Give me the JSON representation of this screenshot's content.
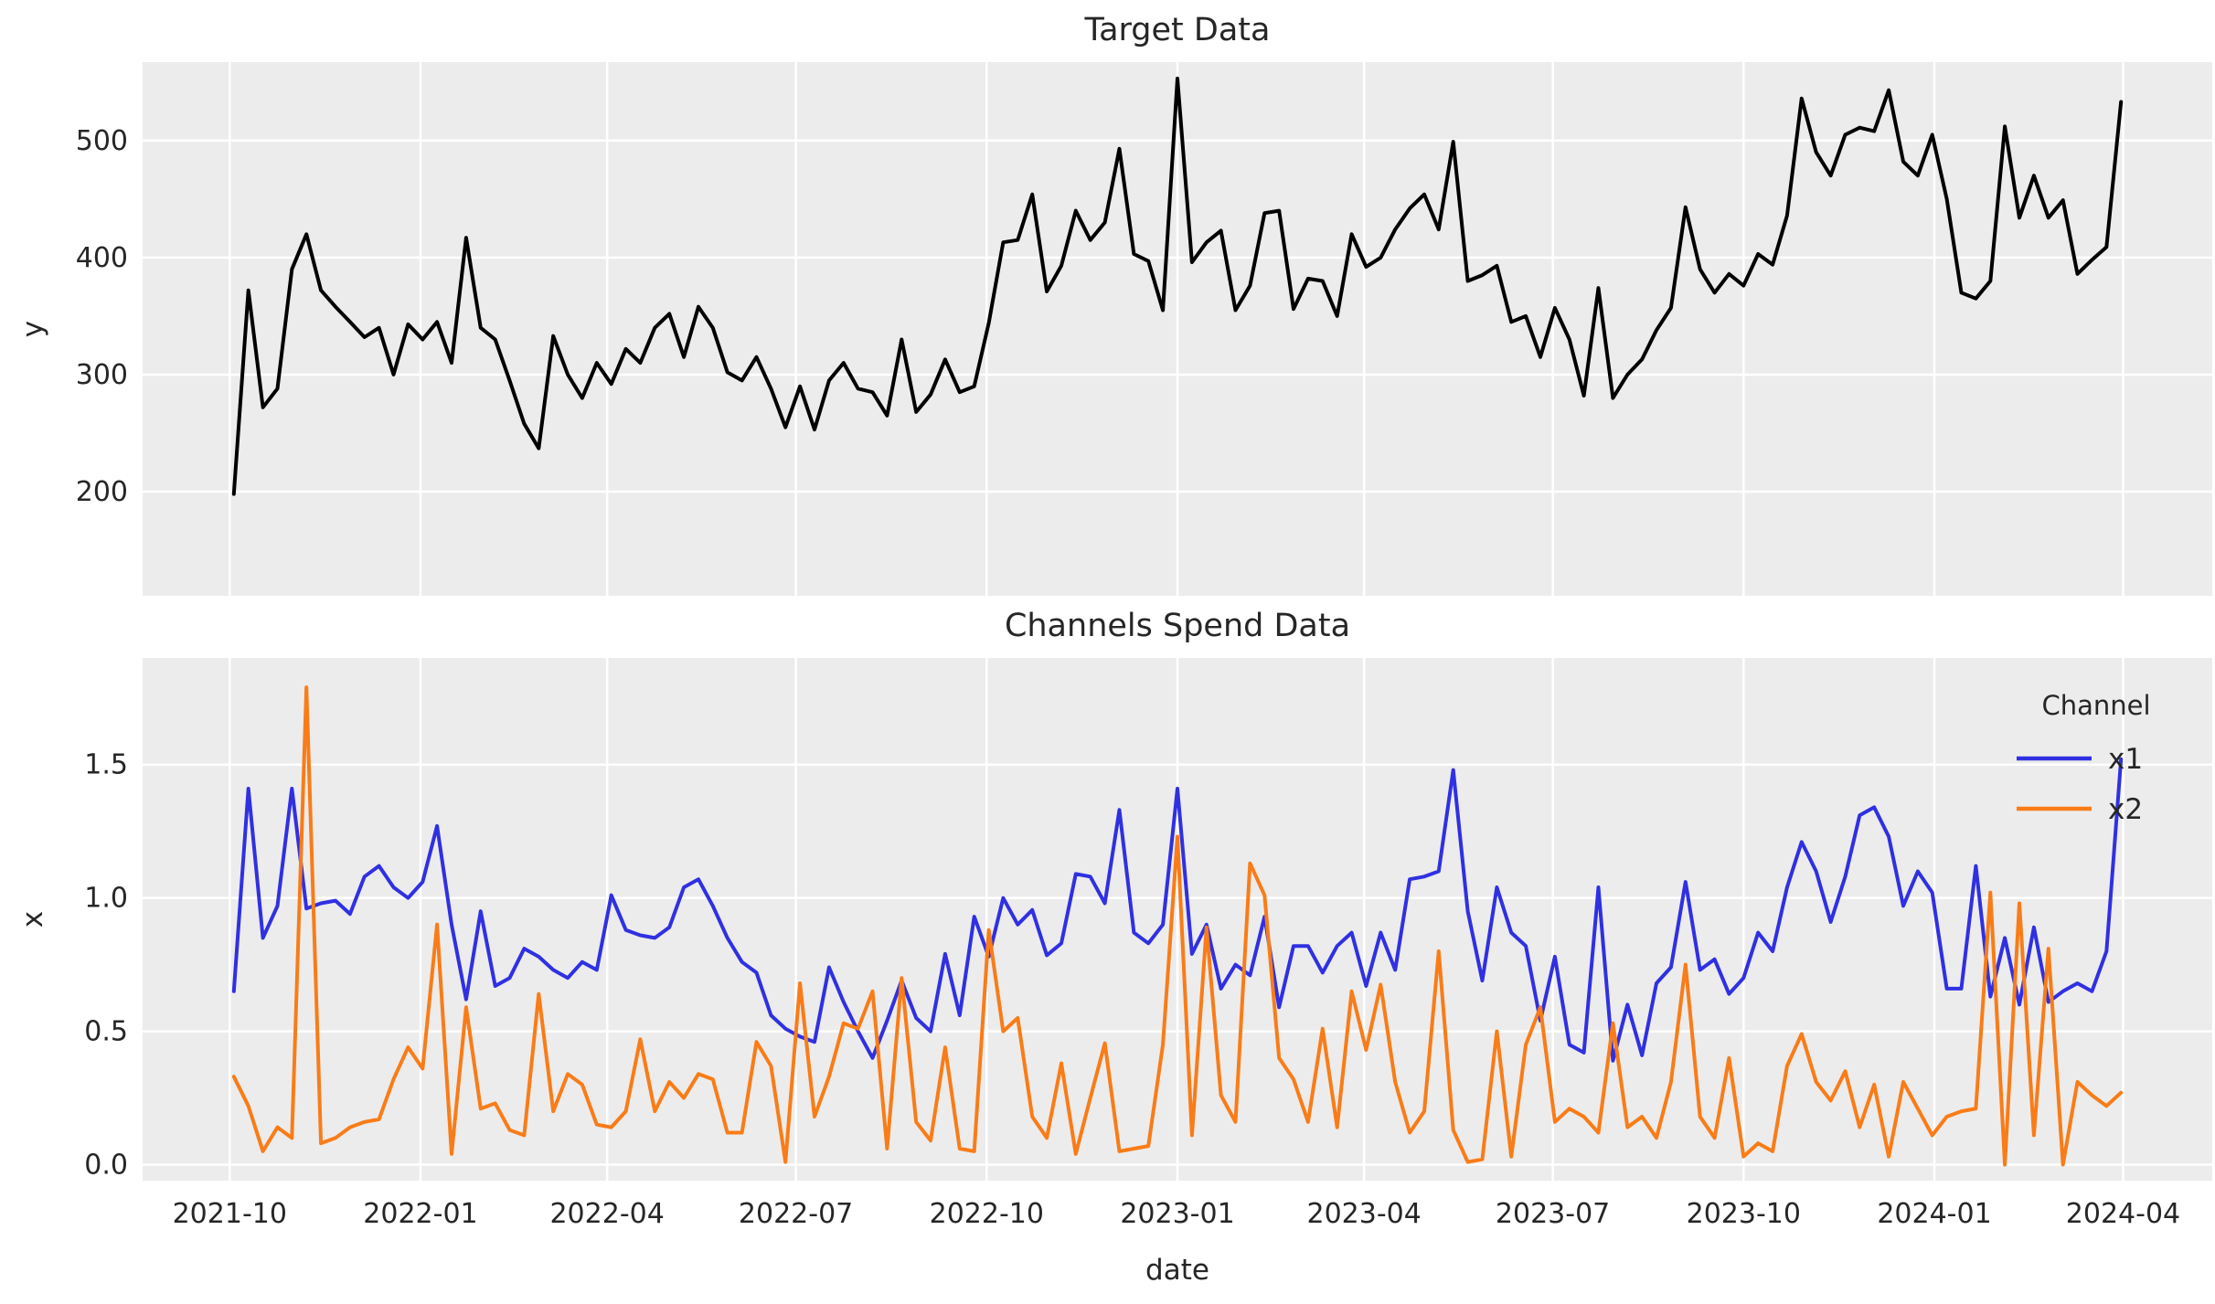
{
  "style": {
    "figure_bg": "#ffffff",
    "plot_bg": "#ececec",
    "grid_color": "#ffffff",
    "text_color": "#262626",
    "target_line_color": "#000000",
    "x1_color": "#3030e2",
    "x2_color": "#f97c18"
  },
  "chart_data": [
    {
      "type": "line",
      "title": "Target Data",
      "ylabel": "y",
      "xlabel": "",
      "x_start_date": "2021-10-03",
      "x_freq_days": 7,
      "x_margin_days": 44,
      "x_tick_dates": [
        "2021-10-01",
        "2022-01-01",
        "2022-04-01",
        "2022-07-01",
        "2022-10-01",
        "2023-01-01",
        "2023-04-01",
        "2023-07-01",
        "2023-10-01",
        "2024-01-01",
        "2024-04-01"
      ],
      "x_tick_labels": [
        "2021-10",
        "2022-01",
        "2022-04",
        "2022-07",
        "2022-10",
        "2023-01",
        "2023-04",
        "2023-07",
        "2023-10",
        "2024-01",
        "2024-04"
      ],
      "show_x_tick_labels": false,
      "ytick_values": [
        200,
        300,
        400,
        500
      ],
      "ytick_labels": [
        "200",
        "300",
        "400",
        "500"
      ],
      "ylim": [
        111,
        567
      ],
      "grid": true,
      "legend": null,
      "series": [
        {
          "name": "y",
          "color": "#000000",
          "values": [
            198,
            372,
            272,
            288,
            390,
            420,
            372,
            358,
            345,
            332,
            340,
            300,
            343,
            330,
            345,
            310,
            417,
            340,
            330,
            295,
            258,
            237,
            333,
            300,
            280,
            310,
            292,
            322,
            310,
            340,
            352,
            315,
            358,
            340,
            302,
            295,
            315,
            288,
            255,
            290,
            253,
            295,
            310,
            288,
            285,
            265,
            330,
            268,
            283,
            313,
            285,
            290,
            344,
            413,
            415,
            454,
            371,
            393,
            440,
            415,
            430,
            493,
            403,
            397,
            355,
            553,
            396,
            413,
            423,
            355,
            376,
            438,
            440,
            356,
            382,
            380,
            350,
            420,
            392,
            400,
            424,
            442,
            454,
            424,
            499,
            380,
            385,
            393,
            345,
            350,
            315,
            357,
            330,
            282,
            374,
            280,
            300,
            313,
            338,
            357,
            443,
            390,
            370,
            386,
            376,
            403,
            394,
            436,
            536,
            490,
            470,
            505,
            511,
            508,
            543,
            482,
            470,
            505,
            450,
            370,
            365,
            380,
            512,
            434,
            470,
            434,
            449,
            386,
            398,
            409,
            533
          ]
        }
      ]
    },
    {
      "type": "line",
      "title": "Channels Spend Data",
      "ylabel": "x",
      "xlabel": "date",
      "x_start_date": "2021-10-03",
      "x_freq_days": 7,
      "x_margin_days": 44,
      "x_tick_dates": [
        "2021-10-01",
        "2022-01-01",
        "2022-04-01",
        "2022-07-01",
        "2022-10-01",
        "2023-01-01",
        "2023-04-01",
        "2023-07-01",
        "2023-10-01",
        "2024-01-01",
        "2024-04-01"
      ],
      "x_tick_labels": [
        "2021-10",
        "2022-01",
        "2022-04",
        "2022-07",
        "2022-10",
        "2023-01",
        "2023-04",
        "2023-07",
        "2023-10",
        "2024-01",
        "2024-04"
      ],
      "show_x_tick_labels": true,
      "ytick_values": [
        0.0,
        0.5,
        1.0,
        1.5
      ],
      "ytick_labels": [
        "0.0",
        "0.5",
        "1.0",
        "1.5"
      ],
      "ylim": [
        -0.06,
        1.9
      ],
      "grid": true,
      "legend": {
        "title": "Channel"
      },
      "series": [
        {
          "name": "x1",
          "color": "#3030e2",
          "values": [
            0.65,
            1.41,
            0.85,
            0.97,
            1.41,
            0.96,
            0.98,
            0.99,
            0.94,
            1.08,
            1.12,
            1.04,
            1.0,
            1.06,
            1.27,
            0.9,
            0.62,
            0.95,
            0.67,
            0.7,
            0.81,
            0.78,
            0.73,
            0.7,
            0.76,
            0.73,
            1.01,
            0.88,
            0.86,
            0.85,
            0.89,
            1.04,
            1.07,
            0.97,
            0.85,
            0.76,
            0.72,
            0.56,
            0.51,
            0.48,
            0.46,
            0.74,
            0.61,
            0.5,
            0.4,
            0.54,
            0.69,
            0.55,
            0.5,
            0.79,
            0.56,
            0.93,
            0.78,
            1.0,
            0.9,
            0.955,
            0.785,
            0.83,
            1.09,
            1.08,
            0.98,
            1.33,
            0.87,
            0.83,
            0.9,
            1.41,
            0.79,
            0.9,
            0.66,
            0.75,
            0.71,
            0.93,
            0.59,
            0.82,
            0.82,
            0.72,
            0.82,
            0.87,
            0.67,
            0.87,
            0.73,
            1.07,
            1.08,
            1.1,
            1.48,
            0.95,
            0.69,
            1.04,
            0.87,
            0.82,
            0.54,
            0.78,
            0.45,
            0.42,
            1.04,
            0.39,
            0.6,
            0.41,
            0.68,
            0.74,
            1.06,
            0.73,
            0.77,
            0.64,
            0.7,
            0.87,
            0.8,
            1.04,
            1.21,
            1.1,
            0.91,
            1.08,
            1.31,
            1.34,
            1.23,
            0.97,
            1.1,
            1.02,
            0.66,
            0.66,
            1.12,
            0.63,
            0.85,
            0.6,
            0.89,
            0.61,
            0.65,
            0.68,
            0.65,
            0.8,
            1.52
          ]
        },
        {
          "name": "x2",
          "color": "#f97c18",
          "values": [
            0.33,
            0.22,
            0.05,
            0.14,
            0.1,
            1.79,
            0.08,
            0.1,
            0.14,
            0.16,
            0.17,
            0.32,
            0.44,
            0.36,
            0.9,
            0.04,
            0.59,
            0.21,
            0.23,
            0.13,
            0.11,
            0.64,
            0.2,
            0.34,
            0.3,
            0.15,
            0.14,
            0.2,
            0.47,
            0.2,
            0.31,
            0.25,
            0.34,
            0.32,
            0.12,
            0.12,
            0.46,
            0.37,
            0.01,
            0.68,
            0.18,
            0.33,
            0.53,
            0.51,
            0.65,
            0.06,
            0.7,
            0.16,
            0.09,
            0.44,
            0.06,
            0.05,
            0.88,
            0.5,
            0.55,
            0.18,
            0.1,
            0.38,
            0.04,
            0.25,
            0.455,
            0.05,
            0.06,
            0.07,
            0.45,
            1.23,
            0.11,
            0.89,
            0.26,
            0.16,
            1.13,
            1.01,
            0.4,
            0.32,
            0.16,
            0.51,
            0.14,
            0.65,
            0.43,
            0.675,
            0.31,
            0.12,
            0.2,
            0.8,
            0.13,
            0.01,
            0.02,
            0.5,
            0.03,
            0.45,
            0.59,
            0.16,
            0.21,
            0.18,
            0.12,
            0.53,
            0.14,
            0.18,
            0.1,
            0.31,
            0.75,
            0.18,
            0.1,
            0.4,
            0.03,
            0.08,
            0.05,
            0.37,
            0.49,
            0.31,
            0.24,
            0.35,
            0.14,
            0.3,
            0.03,
            0.31,
            0.21,
            0.11,
            0.18,
            0.2,
            0.21,
            1.02,
            0.0,
            0.98,
            0.11,
            0.81,
            0.0,
            0.31,
            0.26,
            0.22,
            0.27
          ]
        }
      ]
    }
  ]
}
